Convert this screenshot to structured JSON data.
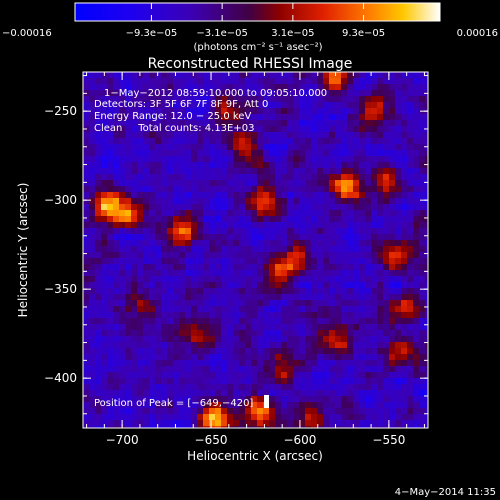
{
  "chart_data": {
    "type": "heatmap",
    "title": "Reconstructed RHESSI Image",
    "xlabel": "Heliocentric X (arcsec)",
    "ylabel": "Heliocentric Y (arcsec)",
    "xlim": [
      -722,
      -528
    ],
    "ylim": [
      -428,
      -228
    ],
    "xticks": [
      -700,
      -650,
      -600,
      -550
    ],
    "yticks": [
      -250,
      -300,
      -350,
      -400
    ],
    "xtick_labels": [
      "−700",
      "−650",
      "−600",
      "−550"
    ],
    "ytick_labels": [
      "−250",
      "−300",
      "−350",
      "−400"
    ],
    "colorbar": {
      "range": [
        -0.00016,
        0.00016
      ],
      "tick_values": [
        -0.00016,
        -9.3e-05,
        -3.1e-05,
        3.1e-05,
        9.3e-05,
        0.00016
      ],
      "tick_labels": [
        "−0.00016",
        "−9.3e−05",
        "−3.1e−05",
        "3.1e−05",
        "9.3e−05",
        "0.00016"
      ],
      "units": "(photons cm⁻² s⁻¹ asec⁻²)"
    },
    "info_lines": [
      "1−May−2012 08:59:10.000 to 09:05:10.000",
      "Detectors: 3F 5F 6F 7F 8F 9F, Att 0",
      "Energy Range: 12.0 − 25.0 keV",
      "Clean     Total counts: 4.13E+03"
    ],
    "peak_label": "Position of Peak = [−649,−420]",
    "peak": [
      -649,
      -420
    ],
    "timestamp": "4−May−2014 11:35",
    "hotspots": [
      {
        "x": -708,
        "y": -303,
        "v": 1.0
      },
      {
        "x": -697,
        "y": -308,
        "v": 0.7
      },
      {
        "x": -668,
        "y": -318,
        "v": 0.8
      },
      {
        "x": -640,
        "y": -250,
        "v": 0.6
      },
      {
        "x": -632,
        "y": -272,
        "v": 0.7
      },
      {
        "x": -620,
        "y": -300,
        "v": 0.75
      },
      {
        "x": -612,
        "y": -340,
        "v": 0.85
      },
      {
        "x": -600,
        "y": -332,
        "v": 0.7
      },
      {
        "x": -580,
        "y": -232,
        "v": 0.75
      },
      {
        "x": -575,
        "y": -292,
        "v": 0.95
      },
      {
        "x": -560,
        "y": -250,
        "v": 0.8
      },
      {
        "x": -552,
        "y": -292,
        "v": 0.7
      },
      {
        "x": -545,
        "y": -330,
        "v": 0.75
      },
      {
        "x": -540,
        "y": -360,
        "v": 0.7
      },
      {
        "x": -545,
        "y": -385,
        "v": 0.6
      },
      {
        "x": -580,
        "y": -378,
        "v": 0.6
      },
      {
        "x": -610,
        "y": -395,
        "v": 0.6
      },
      {
        "x": -648,
        "y": -423,
        "v": 1.0
      },
      {
        "x": -622,
        "y": -420,
        "v": 0.9
      },
      {
        "x": -595,
        "y": -420,
        "v": 0.7
      },
      {
        "x": -690,
        "y": -360,
        "v": 0.45
      },
      {
        "x": -660,
        "y": -375,
        "v": 0.5
      }
    ]
  }
}
